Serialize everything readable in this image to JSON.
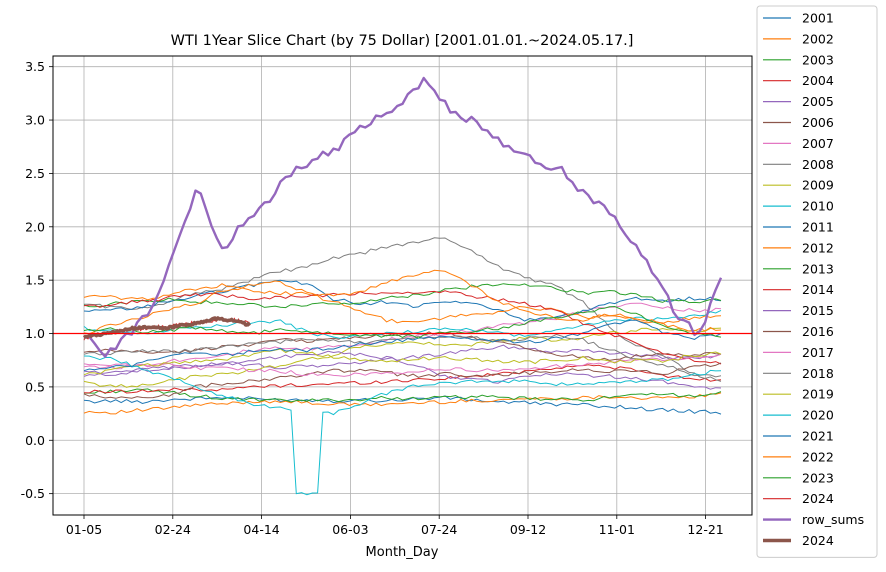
{
  "chart_data": {
    "type": "line",
    "title": "WTI 1Year Slice Chart (by 75 Dollar) [2001.01.01.~2024.05.17.]",
    "xlabel": "Month_Day",
    "ylabel": "",
    "xlim": [
      "01-05",
      "12-31"
    ],
    "ylim": [
      -0.7,
      3.6
    ],
    "x_ticks": [
      "01-05",
      "02-24",
      "04-14",
      "06-03",
      "07-24",
      "09-12",
      "11-01",
      "12-21"
    ],
    "y_ticks": [
      -0.5,
      0.0,
      0.5,
      1.0,
      1.5,
      2.0,
      2.5,
      3.0,
      3.5
    ],
    "grid": true,
    "legend_position": "outside-right",
    "reference_line": {
      "y": 1.0,
      "color": "#ff0000"
    },
    "series": [
      {
        "name": "2001",
        "color": "#1f77b4",
        "values": [
          0.36,
          0.37,
          0.36,
          0.38,
          0.39,
          0.4,
          0.39,
          0.38,
          0.38,
          0.37,
          0.38,
          0.37,
          0.39,
          0.4,
          0.38,
          0.36,
          0.35,
          0.34,
          0.33,
          0.32,
          0.3,
          0.28,
          0.27,
          0.26
        ]
      },
      {
        "name": "2002",
        "color": "#ff7f0e",
        "values": [
          0.27,
          0.26,
          0.28,
          0.3,
          0.33,
          0.34,
          0.36,
          0.37,
          0.35,
          0.34,
          0.33,
          0.34,
          0.35,
          0.36,
          0.37,
          0.38,
          0.39,
          0.39,
          0.4,
          0.41,
          0.4,
          0.39,
          0.41,
          0.43
        ]
      },
      {
        "name": "2003",
        "color": "#2ca02c",
        "values": [
          0.44,
          0.46,
          0.47,
          0.45,
          0.42,
          0.39,
          0.38,
          0.37,
          0.37,
          0.38,
          0.38,
          0.4,
          0.39,
          0.4,
          0.41,
          0.4,
          0.39,
          0.38,
          0.38,
          0.4,
          0.42,
          0.43,
          0.42,
          0.44
        ]
      },
      {
        "name": "2004",
        "color": "#d62728",
        "values": [
          0.45,
          0.46,
          0.46,
          0.47,
          0.48,
          0.47,
          0.5,
          0.51,
          0.52,
          0.53,
          0.54,
          0.55,
          0.57,
          0.58,
          0.6,
          0.62,
          0.65,
          0.68,
          0.7,
          0.69,
          0.65,
          0.6,
          0.58,
          0.56
        ]
      },
      {
        "name": "2005",
        "color": "#9467bd",
        "values": [
          0.6,
          0.62,
          0.65,
          0.66,
          0.7,
          0.72,
          0.71,
          0.68,
          0.69,
          0.71,
          0.73,
          0.76,
          0.78,
          0.81,
          0.84,
          0.88,
          0.86,
          0.83,
          0.85,
          0.82,
          0.8,
          0.78,
          0.77,
          0.79
        ]
      },
      {
        "name": "2006",
        "color": "#8c564b",
        "values": [
          0.82,
          0.84,
          0.83,
          0.82,
          0.84,
          0.88,
          0.9,
          0.94,
          0.93,
          0.95,
          0.97,
          0.98,
          1.0,
          1.0,
          0.96,
          0.93,
          0.87,
          0.8,
          0.78,
          0.76,
          0.79,
          0.8,
          0.8,
          0.81
        ]
      },
      {
        "name": "2007",
        "color": "#e377c2",
        "values": [
          0.7,
          0.68,
          0.7,
          0.74,
          0.77,
          0.8,
          0.84,
          0.86,
          0.85,
          0.88,
          0.9,
          0.94,
          0.98,
          1.0,
          1.03,
          1.08,
          1.1,
          1.14,
          1.2,
          1.25,
          1.28,
          1.24,
          1.22,
          1.22
        ]
      },
      {
        "name": "2008",
        "color": "#7f7f7f",
        "values": [
          1.28,
          1.25,
          1.22,
          1.3,
          1.38,
          1.42,
          1.5,
          1.58,
          1.62,
          1.7,
          1.75,
          1.82,
          1.85,
          1.9,
          1.78,
          1.62,
          1.52,
          1.45,
          1.3,
          1.05,
          0.88,
          0.78,
          0.62,
          0.55
        ]
      },
      {
        "name": "2009",
        "color": "#bcbd22",
        "values": [
          0.55,
          0.5,
          0.52,
          0.55,
          0.6,
          0.62,
          0.65,
          0.7,
          0.75,
          0.8,
          0.88,
          0.9,
          0.92,
          0.88,
          0.9,
          0.93,
          0.96,
          0.94,
          0.96,
          1.0,
          1.03,
          1.05,
          1.02,
          1.05
        ]
      },
      {
        "name": "2010",
        "color": "#17becf",
        "values": [
          1.05,
          1.02,
          1.0,
          1.03,
          1.07,
          1.08,
          1.1,
          1.12,
          1.02,
          0.96,
          0.98,
          1.0,
          1.02,
          1.05,
          1.03,
          1.0,
          0.98,
          1.02,
          1.08,
          1.12,
          1.14,
          1.13,
          1.17,
          1.2
        ]
      },
      {
        "name": "2011",
        "color": "#1f77b4",
        "values": [
          1.2,
          1.22,
          1.24,
          1.3,
          1.35,
          1.4,
          1.45,
          1.5,
          1.47,
          1.32,
          1.28,
          1.3,
          1.25,
          1.3,
          1.28,
          1.22,
          1.12,
          1.15,
          1.2,
          1.28,
          1.33,
          1.3,
          1.33,
          1.32
        ]
      },
      {
        "name": "2012",
        "color": "#ff7f0e",
        "values": [
          1.35,
          1.34,
          1.32,
          1.36,
          1.42,
          1.45,
          1.4,
          1.38,
          1.37,
          1.3,
          1.2,
          1.12,
          1.1,
          1.15,
          1.18,
          1.2,
          1.25,
          1.22,
          1.15,
          1.17,
          1.12,
          1.1,
          1.15,
          1.17
        ]
      },
      {
        "name": "2013",
        "color": "#2ca02c",
        "values": [
          1.25,
          1.28,
          1.3,
          1.32,
          1.3,
          1.28,
          1.27,
          1.25,
          1.26,
          1.28,
          1.3,
          1.33,
          1.36,
          1.4,
          1.44,
          1.46,
          1.45,
          1.42,
          1.38,
          1.4,
          1.36,
          1.3,
          1.3,
          1.31
        ]
      },
      {
        "name": "2014",
        "color": "#d62728",
        "values": [
          1.25,
          1.27,
          1.3,
          1.33,
          1.37,
          1.36,
          1.33,
          1.34,
          1.35,
          1.36,
          1.38,
          1.37,
          1.38,
          1.39,
          1.35,
          1.32,
          1.28,
          1.22,
          1.1,
          1.0,
          0.9,
          0.82,
          0.75,
          0.72
        ]
      },
      {
        "name": "2015",
        "color": "#9467bd",
        "values": [
          0.65,
          0.63,
          0.66,
          0.68,
          0.7,
          0.72,
          0.75,
          0.78,
          0.8,
          0.82,
          0.8,
          0.77,
          0.7,
          0.6,
          0.57,
          0.55,
          0.6,
          0.62,
          0.61,
          0.6,
          0.58,
          0.55,
          0.5,
          0.48
        ]
      },
      {
        "name": "2016",
        "color": "#8c564b",
        "values": [
          0.42,
          0.4,
          0.4,
          0.42,
          0.5,
          0.53,
          0.55,
          0.58,
          0.62,
          0.65,
          0.66,
          0.63,
          0.6,
          0.62,
          0.6,
          0.62,
          0.63,
          0.65,
          0.66,
          0.65,
          0.64,
          0.63,
          0.68,
          0.71
        ]
      },
      {
        "name": "2017",
        "color": "#e377c2",
        "values": [
          0.72,
          0.7,
          0.7,
          0.71,
          0.68,
          0.67,
          0.66,
          0.65,
          0.62,
          0.6,
          0.62,
          0.63,
          0.65,
          0.67,
          0.66,
          0.65,
          0.67,
          0.69,
          0.71,
          0.73,
          0.75,
          0.76,
          0.78,
          0.79
        ]
      },
      {
        "name": "2018",
        "color": "#7f7f7f",
        "values": [
          0.8,
          0.82,
          0.84,
          0.83,
          0.85,
          0.87,
          0.9,
          0.92,
          0.94,
          0.93,
          0.91,
          0.95,
          0.96,
          0.97,
          0.96,
          0.93,
          0.95,
          0.98,
          0.94,
          0.85,
          0.75,
          0.7,
          0.62,
          0.6
        ]
      },
      {
        "name": "2019",
        "color": "#bcbd22",
        "values": [
          0.62,
          0.65,
          0.7,
          0.72,
          0.74,
          0.76,
          0.8,
          0.84,
          0.82,
          0.78,
          0.75,
          0.74,
          0.76,
          0.77,
          0.76,
          0.74,
          0.73,
          0.75,
          0.77,
          0.74,
          0.75,
          0.74,
          0.8,
          0.82
        ]
      },
      {
        "name": "2020",
        "color": "#17becf",
        "values": [
          0.78,
          0.76,
          0.68,
          0.6,
          0.5,
          0.42,
          0.34,
          0.3,
          -0.5,
          0.25,
          0.35,
          0.45,
          0.52,
          0.54,
          0.55,
          0.56,
          0.55,
          0.52,
          0.53,
          0.55,
          0.55,
          0.57,
          0.62,
          0.65
        ]
      },
      {
        "name": "2021",
        "color": "#1f77b4",
        "values": [
          0.65,
          0.68,
          0.72,
          0.78,
          0.82,
          0.8,
          0.83,
          0.85,
          0.84,
          0.87,
          0.9,
          0.92,
          0.95,
          0.97,
          0.96,
          0.93,
          0.92,
          0.95,
          1.0,
          1.08,
          1.12,
          1.0,
          0.95,
          1.0
        ]
      },
      {
        "name": "2022",
        "color": "#ff7f0e",
        "values": [
          1.0,
          1.08,
          1.15,
          1.22,
          1.28,
          1.4,
          1.45,
          1.5,
          1.38,
          1.35,
          1.4,
          1.48,
          1.55,
          1.6,
          1.45,
          1.3,
          1.2,
          1.15,
          1.12,
          1.18,
          1.15,
          1.08,
          1.03,
          1.05
        ]
      },
      {
        "name": "2023",
        "color": "#2ca02c",
        "values": [
          1.03,
          1.05,
          1.02,
          1.03,
          1.05,
          1.02,
          1.0,
          1.03,
          1.02,
          1.0,
          0.98,
          0.98,
          0.97,
          1.0,
          1.02,
          1.05,
          1.1,
          1.15,
          1.2,
          1.25,
          1.18,
          1.05,
          1.0,
          0.98
        ]
      },
      {
        "name": "2024",
        "color": "#d62728",
        "values": [
          0.95,
          1.0,
          1.03,
          1.04,
          1.06,
          1.08,
          1.1,
          1.12,
          1.13,
          1.1
        ]
      }
    ],
    "highlight_series": [
      {
        "name": "row_sums",
        "color": "#9467bd",
        "width": 2.4,
        "values": [
          0.98,
          0.8,
          1.0,
          1.25,
          1.8,
          2.4,
          1.75,
          2.05,
          2.2,
          2.5,
          2.62,
          2.72,
          2.9,
          3.05,
          3.15,
          3.38,
          3.12,
          3.0,
          2.85,
          2.7,
          2.6,
          2.55,
          2.3,
          2.15,
          1.9,
          1.6,
          1.2,
          0.98,
          1.5
        ]
      },
      {
        "name": "2024",
        "color": "#8c564b",
        "width": 3.6,
        "values": [
          0.97,
          0.99,
          1.02,
          1.05,
          1.06,
          1.05,
          1.08,
          1.1,
          1.14,
          1.12,
          1.08
        ]
      }
    ]
  }
}
